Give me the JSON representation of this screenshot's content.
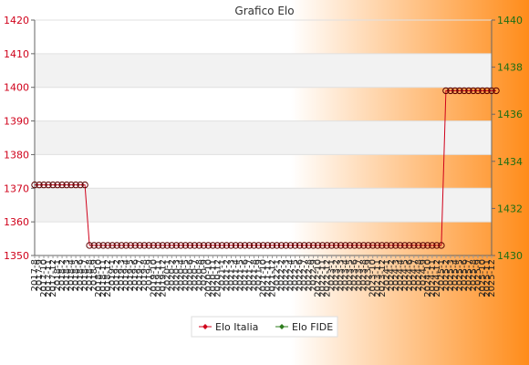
{
  "chart_data": {
    "type": "line",
    "title": "Grafico Elo",
    "legend_position": "bottom",
    "grid": true,
    "y_left": {
      "ylim": [
        1350,
        1420
      ],
      "ticks": [
        1350,
        1360,
        1370,
        1380,
        1390,
        1400,
        1410,
        1420
      ]
    },
    "y_right": {
      "ylim": [
        1430,
        1440
      ],
      "ticks": [
        1430,
        1432,
        1434,
        1436,
        1438,
        1440
      ]
    },
    "x_tick_labels": [
      "2017-8",
      "2017-9",
      "2017-10",
      "2017-11",
      "2017-12",
      "2018-1",
      "2018-2",
      "2018-3",
      "2018-4",
      "2018-5",
      "2018-6",
      "2018-7",
      "2018-8",
      "2018-9",
      "2018-10",
      "2018-11",
      "2018-12",
      "2019-1",
      "2019-2",
      "2019-3",
      "2019-4",
      "2019-5",
      "2019-6",
      "2019-7",
      "2019-8",
      "2019-9",
      "2019-10",
      "2019-11",
      "2019-12",
      "2020-1",
      "2020-2",
      "2020-3",
      "2020-4",
      "2020-5",
      "2020-6",
      "2020-7",
      "2020-8",
      "2020-9",
      "2020-10",
      "2020-11",
      "2020-12",
      "2021-1",
      "2021-2",
      "2021-3",
      "2021-4",
      "2021-5",
      "2021-6",
      "2021-7",
      "2021-8",
      "2021-9",
      "2021-10",
      "2021-11",
      "2021-12",
      "2022-1",
      "2022-2",
      "2022-3",
      "2022-4",
      "2022-5",
      "2022-6",
      "2022-7",
      "2022-8",
      "2022-9",
      "2022-10",
      "2022-11",
      "2022-12",
      "2023-1",
      "2023-2",
      "2023-3",
      "2023-4",
      "2023-5",
      "2023-6",
      "2023-7",
      "2023-8",
      "2023-9",
      "2023-10",
      "2023-11",
      "2023-12",
      "2024-1",
      "2024-2",
      "2024-3",
      "2024-4",
      "2024-5",
      "2024-6",
      "2024-7",
      "2024-8",
      "2024-9",
      "2024-10",
      "2024-11",
      "2024-12",
      "2025-1",
      "2025-2",
      "2025-3",
      "2025-4",
      "2025-5",
      "2025-6",
      "2025-7",
      "2025-8",
      "2025-9",
      "2025-10",
      "2025-11",
      "2025-12"
    ],
    "series": [
      {
        "name": "Elo Italia",
        "axis": "left",
        "color": "#d0021b",
        "values": [
          1371,
          1371,
          1371,
          1371,
          1371,
          1371,
          1371,
          1371,
          1371,
          1371,
          1371,
          1371,
          1353,
          1353,
          1353,
          1353,
          1353,
          1353,
          1353,
          1353,
          1353,
          1353,
          1353,
          1353,
          1353,
          1353,
          1353,
          1353,
          1353,
          1353,
          1353,
          1353,
          1353,
          1353,
          1353,
          1353,
          1353,
          1353,
          1353,
          1353,
          1353,
          1353,
          1353,
          1353,
          1353,
          1353,
          1353,
          1353,
          1353,
          1353,
          1353,
          1353,
          1353,
          1353,
          1353,
          1353,
          1353,
          1353,
          1353,
          1353,
          1353,
          1353,
          1353,
          1353,
          1353,
          1353,
          1353,
          1353,
          1353,
          1353,
          1353,
          1353,
          1353,
          1353,
          1353,
          1353,
          1353,
          1353,
          1353,
          1353,
          1353,
          1353,
          1353,
          1353,
          1353,
          1353,
          1353,
          1353,
          1353,
          1353,
          1399,
          1399,
          1399,
          1399,
          1399,
          1399,
          1399,
          1399,
          1399,
          1399,
          1399,
          1399
        ]
      },
      {
        "name": "Elo FIDE",
        "axis": "right",
        "color": "#2e7d1e",
        "values": []
      }
    ],
    "series_x": {
      "Elo Italia": [
        0,
        1,
        2,
        3,
        4,
        5,
        6,
        7,
        8,
        9,
        10,
        11,
        12,
        13,
        14,
        15,
        16,
        17,
        18,
        19,
        20,
        21,
        22,
        23,
        24,
        25,
        26,
        27,
        28,
        29,
        30,
        31,
        32,
        33,
        34,
        35,
        36,
        37,
        38,
        39,
        40,
        41,
        42,
        43,
        44,
        45,
        46,
        47,
        48,
        49,
        50,
        51,
        52,
        53,
        54,
        55,
        56,
        57,
        58,
        59,
        60,
        61,
        62,
        63,
        64,
        65,
        66,
        67,
        68,
        69,
        70,
        71,
        72,
        73,
        74,
        75,
        76,
        77,
        78,
        79,
        80,
        81,
        82,
        83,
        84,
        85,
        86,
        87,
        88,
        89,
        90,
        91,
        92,
        93,
        94,
        95,
        96,
        97,
        98,
        99,
        100,
        101
      ]
    }
  }
}
